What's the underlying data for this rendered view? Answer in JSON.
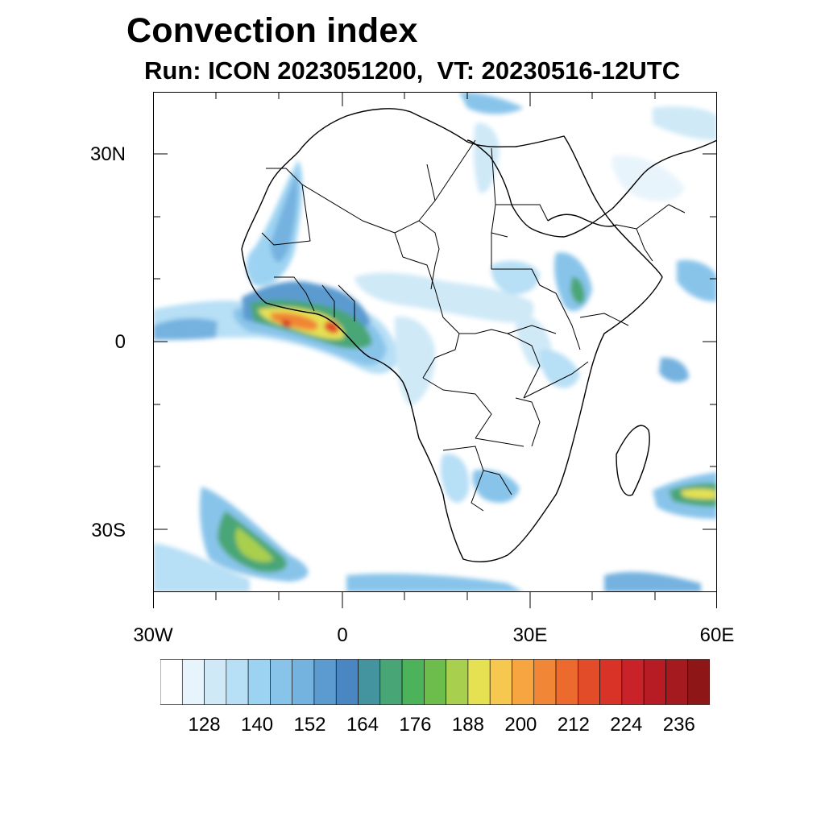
{
  "title": "Convection index",
  "subtitle": "Run: ICON 2023051200,  VT: 20230516-12UTC",
  "map": {
    "region": "Africa",
    "lat_ticks": [
      "30N",
      "0",
      "30S"
    ],
    "lon_ticks": [
      "30W",
      "0",
      "30E",
      "60E"
    ],
    "extent": {
      "lon": [
        -30,
        60
      ],
      "lat": [
        -40,
        40
      ]
    }
  },
  "colorbar": {
    "colors": [
      "#ffffff",
      "#e8f4fb",
      "#cfe9f7",
      "#b7dff5",
      "#9dd3f2",
      "#88c4ea",
      "#74b2e0",
      "#5b9bd0",
      "#4a86c2",
      "#44949f",
      "#48a676",
      "#4cb35a",
      "#6dbd4c",
      "#a9cf4e",
      "#e6e152",
      "#f7c84f",
      "#f6a541",
      "#f18636",
      "#ec6a2d",
      "#e24c29",
      "#d93226",
      "#ca2229",
      "#b71c24",
      "#a51a1f",
      "#8e1616"
    ],
    "labels": [
      "128",
      "140",
      "152",
      "164",
      "176",
      "188",
      "200",
      "212",
      "224",
      "236"
    ]
  }
}
